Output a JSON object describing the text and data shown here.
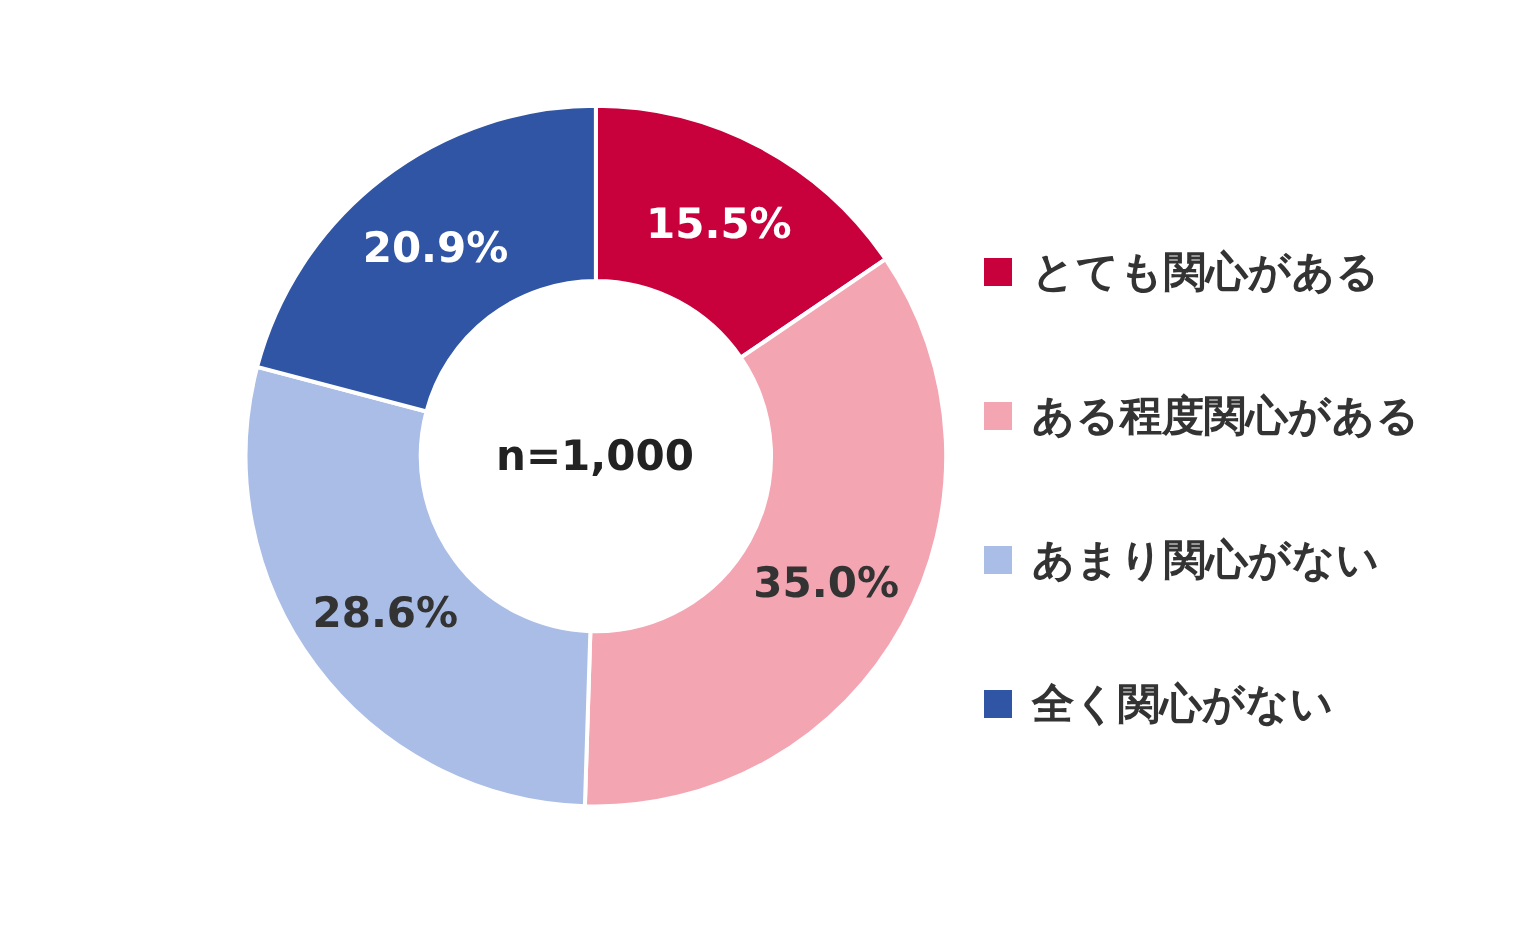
{
  "chart_data": {
    "type": "donut",
    "categories": [
      "とても関心がある",
      "ある程度関心がある",
      "あまり関心がない",
      "全く関心がない"
    ],
    "values": [
      15.5,
      35.0,
      28.6,
      20.9
    ],
    "value_labels": [
      "15.5%",
      "35.0%",
      "28.6%",
      "20.9%"
    ],
    "colors": [
      "#c8003c",
      "#f4a5b2",
      "#a9bde6",
      "#2f55a4"
    ],
    "annotations": [
      "n=1,000"
    ],
    "legend": "right"
  }
}
